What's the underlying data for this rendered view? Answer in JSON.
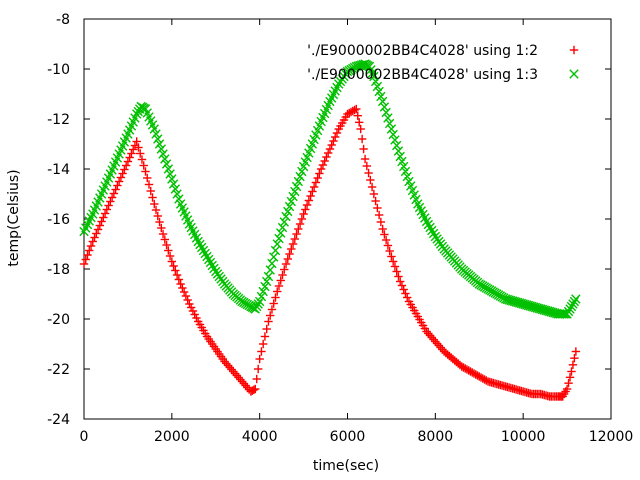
{
  "chart_data": {
    "type": "scatter",
    "xlabel": "time(sec)",
    "ylabel": "temp(Celsius)",
    "xlim": [
      0,
      12000
    ],
    "ylim": [
      -24,
      -8
    ],
    "x_ticks": [
      0,
      2000,
      4000,
      6000,
      8000,
      10000,
      12000
    ],
    "y_ticks": [
      -24,
      -22,
      -20,
      -18,
      -16,
      -14,
      -12,
      -10,
      -8
    ],
    "x_tick_labels": [
      "0",
      "2000",
      "4000",
      "6000",
      "8000",
      "10000",
      "12000"
    ],
    "y_tick_labels": [
      "-24",
      "-22",
      "-20",
      "-18",
      "-16",
      "-14",
      "-12",
      "-10",
      "-8"
    ],
    "grid": false,
    "legend_position": "top-right",
    "series": [
      {
        "name": "'./E9000002BB4C4028' using 1:2",
        "marker": "plus",
        "color": "#ff0000",
        "x": [
          0,
          200,
          400,
          600,
          800,
          1000,
          1200,
          1400,
          1600,
          1800,
          2000,
          2200,
          2400,
          2600,
          2800,
          3000,
          3200,
          3400,
          3600,
          3800,
          3900,
          4000,
          4200,
          4400,
          4600,
          4800,
          5000,
          5200,
          5400,
          5600,
          5800,
          6000,
          6200,
          6300,
          6400,
          6600,
          6800,
          7000,
          7200,
          7400,
          7600,
          7800,
          8000,
          8200,
          8400,
          8600,
          8800,
          9000,
          9200,
          9400,
          9600,
          9800,
          10000,
          10200,
          10400,
          10600,
          10800,
          10900,
          11000,
          11100,
          11200
        ],
        "y": [
          -17.8,
          -16.9,
          -16.1,
          -15.3,
          -14.5,
          -13.7,
          -12.9,
          -14.1,
          -15.4,
          -16.6,
          -17.7,
          -18.6,
          -19.4,
          -20.1,
          -20.7,
          -21.2,
          -21.7,
          -22.1,
          -22.5,
          -22.9,
          -22.8,
          -21.6,
          -20.1,
          -18.9,
          -17.8,
          -16.8,
          -15.8,
          -14.9,
          -14.0,
          -13.2,
          -12.4,
          -11.8,
          -11.6,
          -12.4,
          -13.6,
          -15.0,
          -16.4,
          -17.5,
          -18.5,
          -19.3,
          -19.9,
          -20.5,
          -20.9,
          -21.3,
          -21.6,
          -21.9,
          -22.1,
          -22.3,
          -22.5,
          -22.6,
          -22.7,
          -22.8,
          -22.9,
          -23.0,
          -23.0,
          -23.1,
          -23.1,
          -23.1,
          -22.8,
          -22.1,
          -21.3
        ]
      },
      {
        "name": "'./E9000002BB4C4028' using 1:3",
        "marker": "cross",
        "color": "#00c000",
        "x": [
          0,
          200,
          400,
          600,
          800,
          1000,
          1200,
          1300,
          1400,
          1600,
          1800,
          2000,
          2200,
          2400,
          2600,
          2800,
          3000,
          3200,
          3400,
          3600,
          3800,
          3900,
          4000,
          4200,
          4400,
          4600,
          4800,
          5000,
          5200,
          5400,
          5600,
          5800,
          6000,
          6200,
          6400,
          6500,
          6600,
          6800,
          7000,
          7200,
          7400,
          7600,
          7800,
          8000,
          8200,
          8400,
          8600,
          8800,
          9000,
          9200,
          9400,
          9600,
          9800,
          10000,
          10200,
          10400,
          10600,
          10800,
          11000,
          11100,
          11200
        ],
        "y": [
          -16.5,
          -15.8,
          -15.0,
          -14.2,
          -13.4,
          -12.6,
          -11.8,
          -11.5,
          -11.6,
          -12.4,
          -13.4,
          -14.4,
          -15.4,
          -16.2,
          -16.9,
          -17.5,
          -18.1,
          -18.6,
          -19.0,
          -19.3,
          -19.5,
          -19.6,
          -19.3,
          -18.3,
          -17.0,
          -15.9,
          -14.9,
          -13.9,
          -13.0,
          -12.1,
          -11.3,
          -10.6,
          -10.1,
          -9.9,
          -9.8,
          -9.9,
          -10.3,
          -11.3,
          -12.4,
          -13.5,
          -14.5,
          -15.4,
          -16.1,
          -16.7,
          -17.2,
          -17.6,
          -18.0,
          -18.3,
          -18.6,
          -18.8,
          -19.0,
          -19.2,
          -19.3,
          -19.4,
          -19.5,
          -19.6,
          -19.7,
          -19.8,
          -19.8,
          -19.5,
          -19.2
        ]
      }
    ]
  }
}
